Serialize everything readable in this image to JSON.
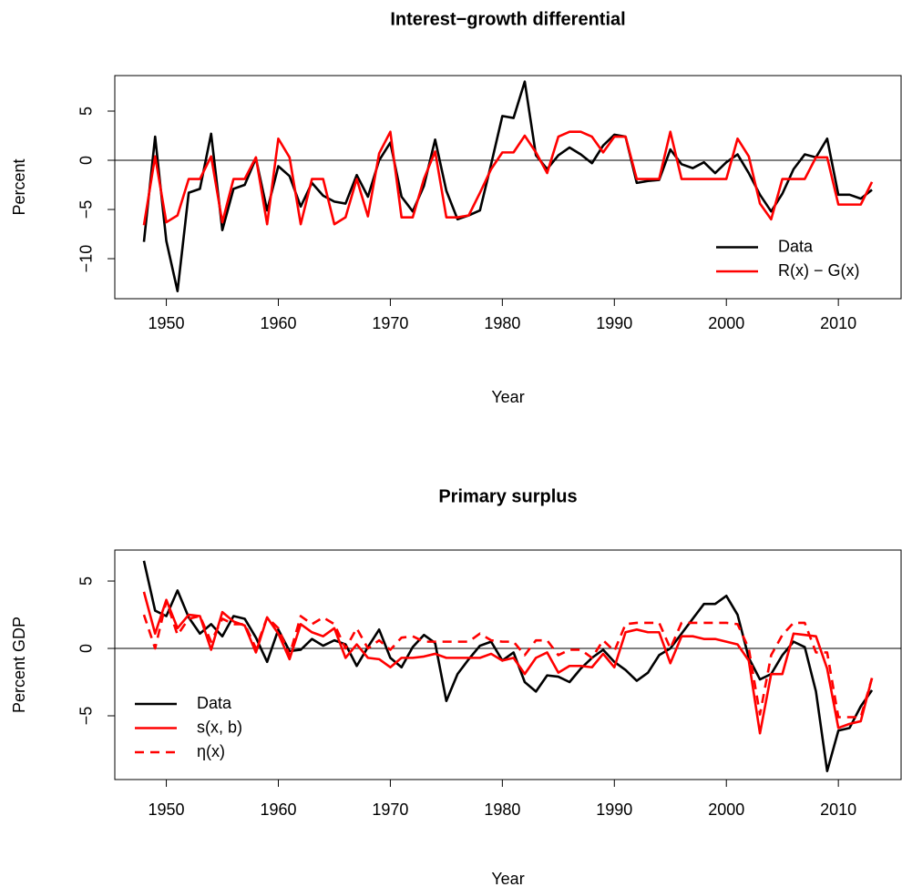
{
  "chart_data": [
    {
      "type": "line",
      "title": "Interest−growth differential",
      "xlabel": "Year",
      "ylabel": "Percent",
      "x": [
        1948,
        1949,
        1950,
        1951,
        1952,
        1953,
        1954,
        1955,
        1956,
        1957,
        1958,
        1959,
        1960,
        1961,
        1962,
        1963,
        1964,
        1965,
        1966,
        1967,
        1968,
        1969,
        1970,
        1971,
        1972,
        1973,
        1974,
        1975,
        1976,
        1977,
        1978,
        1979,
        1980,
        1981,
        1982,
        1983,
        1984,
        1985,
        1986,
        1987,
        1988,
        1989,
        1990,
        1991,
        1992,
        1993,
        1994,
        1995,
        1996,
        1997,
        1998,
        1999,
        2000,
        2001,
        2002,
        2003,
        2004,
        2005,
        2006,
        2007,
        2008,
        2009,
        2010,
        2011,
        2012,
        2013
      ],
      "series": [
        {
          "name": "Data",
          "color": "#000000",
          "linestyle": "solid",
          "values": [
            -8.3,
            2.4,
            -8.2,
            -13.3,
            -3.3,
            -2.9,
            2.7,
            -7.1,
            -2.9,
            -2.5,
            0.2,
            -5.1,
            -0.6,
            -1.6,
            -4.7,
            -2.3,
            -3.6,
            -4.2,
            -4.4,
            -1.5,
            -3.7,
            0,
            1.8,
            -3.7,
            -5.2,
            -2.6,
            2.1,
            -3.1,
            -6.0,
            -5.6,
            -5.1,
            -0.4,
            4.5,
            4.3,
            8.0,
            0.5,
            -0.9,
            0.5,
            1.3,
            0.6,
            -0.3,
            1.5,
            2.6,
            2.4,
            -2.3,
            -2.1,
            -2.0,
            1.1,
            -0.4,
            -0.8,
            -0.2,
            -1.3,
            -0.2,
            0.6,
            -1.3,
            -3.5,
            -5.2,
            -3.4,
            -0.9,
            0.6,
            0.3,
            2.2,
            -3.5,
            -3.5,
            -3.9,
            -3.0
          ]
        },
        {
          "name": "R(x) − G(x)",
          "color": "#ff0000",
          "linestyle": "solid",
          "values": [
            -6.6,
            0.4,
            -6.3,
            -5.6,
            -1.9,
            -1.9,
            0.4,
            -6.3,
            -1.9,
            -1.9,
            0.3,
            -6.5,
            2.2,
            0.3,
            -6.5,
            -1.9,
            -1.9,
            -6.5,
            -5.8,
            -1.9,
            -5.7,
            0.7,
            2.9,
            -5.8,
            -5.8,
            -1.9,
            0.9,
            -5.8,
            -5.8,
            -5.6,
            -3.3,
            -0.9,
            0.8,
            0.8,
            2.5,
            0.8,
            -1.3,
            2.4,
            2.9,
            2.9,
            2.4,
            0.8,
            2.4,
            2.4,
            -1.9,
            -1.9,
            -1.9,
            2.9,
            -1.9,
            -1.9,
            -1.9,
            -1.9,
            -1.9,
            2.2,
            0.4,
            -4.4,
            -6.0,
            -1.9,
            -1.9,
            -1.9,
            0.3,
            0.3,
            -4.5,
            -4.5,
            -4.5,
            -2.2
          ]
        }
      ],
      "xlim": [
        1945.4,
        2015.6
      ],
      "xticks": [
        1950,
        1960,
        1970,
        1980,
        1990,
        2000,
        2010
      ],
      "ylim": [
        -14.07,
        8.61
      ],
      "yticks": [
        {
          "value": -10,
          "label": "−10"
        },
        {
          "value": -5,
          "label": "−5"
        },
        0,
        5
      ],
      "hline": 0,
      "legend": "bottomright"
    },
    {
      "type": "line",
      "title": "Primary surplus",
      "xlabel": "Year",
      "ylabel": "Percent GDP",
      "x": [
        1948,
        1949,
        1950,
        1951,
        1952,
        1953,
        1954,
        1955,
        1956,
        1957,
        1958,
        1959,
        1960,
        1961,
        1962,
        1963,
        1964,
        1965,
        1966,
        1967,
        1968,
        1969,
        1970,
        1971,
        1972,
        1973,
        1974,
        1975,
        1976,
        1977,
        1978,
        1979,
        1980,
        1981,
        1982,
        1983,
        1984,
        1985,
        1986,
        1987,
        1988,
        1989,
        1990,
        1991,
        1992,
        1993,
        1994,
        1995,
        1996,
        1997,
        1998,
        1999,
        2000,
        2001,
        2002,
        2003,
        2004,
        2005,
        2006,
        2007,
        2008,
        2009,
        2010,
        2011,
        2012,
        2013
      ],
      "series": [
        {
          "name": "Data",
          "color": "#000000",
          "linestyle": "solid",
          "values": [
            6.5,
            2.8,
            2.4,
            4.3,
            2.3,
            1.1,
            1.8,
            0.9,
            2.4,
            2.2,
            0.8,
            -1.0,
            1.4,
            -0.2,
            -0.1,
            0.7,
            0.2,
            0.6,
            0.3,
            -1.3,
            0.1,
            1.4,
            -0.7,
            -1.4,
            0.1,
            1.0,
            0.4,
            -3.9,
            -1.9,
            -0.8,
            0.2,
            0.5,
            -0.9,
            -0.3,
            -2.5,
            -3.2,
            -2.0,
            -2.1,
            -2.5,
            -1.5,
            -0.7,
            -0.1,
            -1.0,
            -1.6,
            -2.4,
            -1.8,
            -0.5,
            0,
            1.1,
            2.2,
            3.3,
            3.3,
            3.9,
            2.5,
            -0.7,
            -2.3,
            -1.9,
            -0.5,
            0.5,
            0.1,
            -3.2,
            -9.1,
            -6.1,
            -5.9,
            -4.3,
            -3.1
          ]
        },
        {
          "name": "s(x, b)",
          "color": "#ff0000",
          "linestyle": "solid",
          "values": [
            4.2,
            1.1,
            3.6,
            1.5,
            2.5,
            2.4,
            -0.1,
            2.7,
            2.0,
            1.7,
            -0.3,
            2.3,
            1.1,
            -0.8,
            1.8,
            1.2,
            0.9,
            1.5,
            -0.7,
            0.3,
            -0.7,
            -0.8,
            -1.4,
            -0.7,
            -0.7,
            -0.6,
            -0.4,
            -0.7,
            -0.7,
            -0.7,
            -0.7,
            -0.4,
            -0.9,
            -0.7,
            -1.9,
            -0.7,
            -0.3,
            -1.8,
            -1.3,
            -1.3,
            -1.4,
            -0.4,
            -1.4,
            1.2,
            1.4,
            1.2,
            1.2,
            -1.1,
            0.9,
            0.9,
            0.7,
            0.7,
            0.5,
            0.3,
            -0.9,
            -6.3,
            -1.9,
            -1.9,
            1.1,
            1.0,
            0.9,
            -1.5,
            -5.9,
            -5.6,
            -5.4,
            -2.2
          ]
        },
        {
          "name": "η(x)",
          "color": "#ff0000",
          "linestyle": "dashed",
          "values": [
            2.5,
            0,
            3.5,
            1.0,
            2.2,
            2.4,
            0.5,
            2.2,
            1.8,
            1.8,
            0,
            2.3,
            1.5,
            -0.5,
            2.4,
            1.8,
            2.3,
            1.8,
            0,
            1.5,
            0,
            0.6,
            -0.1,
            0.8,
            0.9,
            0.5,
            0.5,
            0.5,
            0.5,
            0.5,
            1.1,
            0.6,
            0.5,
            0.5,
            -0.5,
            0.6,
            0.6,
            -0.5,
            -0.1,
            -0.1,
            -0.7,
            0.6,
            -0.2,
            1.8,
            1.9,
            1.9,
            1.9,
            0,
            1.9,
            1.9,
            1.9,
            1.9,
            1.9,
            1.8,
            0,
            -4.9,
            -0.5,
            1.0,
            1.9,
            1.9,
            -0.3,
            -0.3,
            -5.1,
            -5.1,
            -5.1,
            -2.2
          ]
        }
      ],
      "xlim": [
        1945.4,
        2015.6
      ],
      "xticks": [
        1950,
        1960,
        1970,
        1980,
        1990,
        2000,
        2010
      ],
      "ylim": [
        -9.73,
        7.3
      ],
      "yticks": [
        {
          "value": -5,
          "label": "−5"
        },
        0,
        5
      ],
      "hline": 0,
      "legend": "bottomleft"
    }
  ]
}
